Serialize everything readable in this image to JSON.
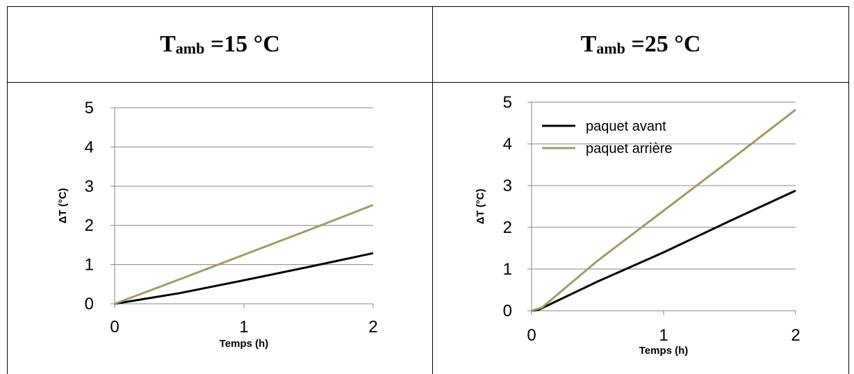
{
  "header": {
    "left": {
      "symbol": "T",
      "subscript": "amb",
      "value": " =15 °C"
    },
    "right": {
      "symbol": "T",
      "subscript": "amb",
      "value": " =25 °C"
    }
  },
  "colors": {
    "avant": "#000000",
    "arriere": "#A39A69",
    "grid": "#868686"
  },
  "chart_data": [
    {
      "type": "line",
      "title": "",
      "xlabel": "Temps (h)",
      "ylabel": "ΔT (°C)",
      "xlim": [
        0,
        2
      ],
      "ylim": [
        0,
        5
      ],
      "xticks": [
        "0",
        "1",
        "2"
      ],
      "yticks": [
        "0",
        "1",
        "2",
        "3",
        "4",
        "5"
      ],
      "grid": true,
      "legend": "none",
      "series": [
        {
          "name": "paquet avant",
          "x": [
            0,
            0.5,
            1,
            1.5,
            2
          ],
          "y": [
            0,
            0.27,
            0.6,
            0.94,
            1.29
          ]
        },
        {
          "name": "paquet arrière",
          "x": [
            0,
            0.5,
            1,
            1.5,
            2
          ],
          "y": [
            0,
            0.62,
            1.25,
            1.88,
            2.52
          ]
        }
      ]
    },
    {
      "type": "line",
      "title": "",
      "xlabel": "Temps (h)",
      "ylabel": "ΔT (°C)",
      "xlim": [
        0,
        2
      ],
      "ylim": [
        0,
        5
      ],
      "xticks": [
        "0",
        "1",
        "2"
      ],
      "yticks": [
        "0",
        "1",
        "2",
        "3",
        "4",
        "5"
      ],
      "grid": true,
      "legend": "top-left",
      "series": [
        {
          "name": "paquet avant",
          "x": [
            0,
            0.05,
            0.5,
            1,
            1.5,
            2
          ],
          "y": [
            0,
            0.02,
            0.7,
            1.4,
            2.15,
            2.88
          ]
        },
        {
          "name": "paquet arrière",
          "x": [
            0,
            0.08,
            0.5,
            1,
            1.5,
            2
          ],
          "y": [
            0,
            0.08,
            1.2,
            2.4,
            3.6,
            4.82
          ]
        }
      ]
    }
  ]
}
